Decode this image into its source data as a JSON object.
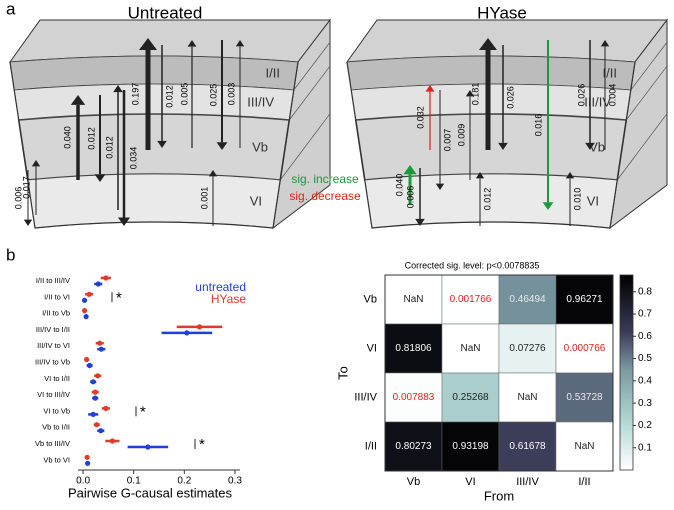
{
  "panel_labels": [
    "a",
    "b"
  ],
  "diagrams": [
    {
      "title": "Untreated",
      "layers": [
        "I/II",
        "III/IV",
        "Vb",
        "VI"
      ],
      "arrow_labels": [
        "0.197",
        "0.012",
        "0.005",
        "0.040",
        "0.012",
        "0.012",
        "0.034",
        "0.025",
        "0.003",
        "0.017",
        "0.006",
        "0.001"
      ]
    },
    {
      "title": "HYase",
      "layers": [
        "I/II",
        "III/IV",
        "Vb",
        "VI"
      ],
      "arrow_labels": [
        "0.181",
        "0.026",
        "0.016",
        "0.032",
        "0.007",
        "0.009",
        "0.026",
        "0.004",
        "0.040",
        "0.006",
        "0.012",
        "0.010"
      ]
    }
  ],
  "legend": [
    {
      "text": "sig. increase",
      "color": "#1a9a3a"
    },
    {
      "text": "sig. decrease",
      "color": "#e0201b"
    }
  ],
  "chart_data": [
    {
      "type": "errorbar",
      "categories": [
        "I/II to III/IV",
        "I/II to VI",
        "I/II to Vb",
        "III/IV to I/II",
        "III/IV to VI",
        "III/IV to Vb",
        "VI to I/II",
        "VI to III/IV",
        "VI to Vb",
        "Vb to I/II",
        "Vb to III/IV",
        "Vb to VI"
      ],
      "series": [
        {
          "name": "untreated",
          "color": "#1f3fd6",
          "values": [
            0.03,
            0.003,
            0.006,
            0.205,
            0.036,
            0.013,
            0.02,
            0.024,
            0.02,
            0.035,
            0.128,
            0.009
          ],
          "errors": [
            0.008,
            0.003,
            0.004,
            0.05,
            0.008,
            0.006,
            0.006,
            0.006,
            0.01,
            0.007,
            0.04,
            0.004
          ]
        },
        {
          "name": "HYase",
          "color": "#e03a2a",
          "values": [
            0.045,
            0.012,
            0.003,
            0.23,
            0.033,
            0.007,
            0.029,
            0.024,
            0.045,
            0.027,
            0.058,
            0.008
          ],
          "errors": [
            0.01,
            0.008,
            0.002,
            0.045,
            0.008,
            0.004,
            0.007,
            0.007,
            0.008,
            0.006,
            0.014,
            0.004
          ]
        }
      ],
      "annotations": [
        "*",
        "*",
        "*"
      ],
      "xlabel": "Pairwise G-causal estimates",
      "xlim": [
        -0.01,
        0.31
      ],
      "xticks": [
        {
          "value": 0,
          "label": "0.0"
        },
        0.1,
        0.2,
        0.3
      ]
    },
    {
      "type": "heatmap",
      "title": "Corrected sig. level: p<0.0078835",
      "xcategories": [
        "Vb",
        "VI",
        "III/IV",
        "I/II"
      ],
      "ycategories": [
        "Vb",
        "VI",
        "III/IV",
        "I/II"
      ],
      "values": [
        [
          null,
          0.001766,
          0.46494,
          0.96271
        ],
        [
          0.81806,
          null,
          0.07276,
          0.000766
        ],
        [
          0.007883,
          0.25268,
          null,
          0.53728
        ],
        [
          0.80273,
          0.93198,
          0.61678,
          null
        ]
      ],
      "value_labels": [
        [
          "NaN",
          "0.001766",
          "0.46494",
          "0.96271"
        ],
        [
          "0.81806",
          "NaN",
          "0.07276",
          "0.000766"
        ],
        [
          "0.007883",
          "0.25268",
          "NaN",
          "0.53728"
        ],
        [
          "0.80273",
          "0.93198",
          "0.61678",
          "NaN"
        ]
      ],
      "highlight": [
        [
          0,
          1
        ],
        [
          1,
          3
        ],
        [
          2,
          0
        ]
      ],
      "highlight_color": "#e0201b",
      "xlabel": "From",
      "ylabel": "To",
      "clim": [
        0,
        0.875
      ],
      "cticks": [
        0.1,
        0.2,
        0.3,
        0.4,
        0.5,
        0.6,
        0.7,
        0.8
      ],
      "colormap": [
        [
          0,
          "#ffffff"
        ],
        [
          0.2,
          "#b7dcd8"
        ],
        [
          0.45,
          "#7b9aa3"
        ],
        [
          0.62,
          "#3b3b58"
        ],
        [
          0.85,
          "#050508"
        ]
      ]
    }
  ]
}
